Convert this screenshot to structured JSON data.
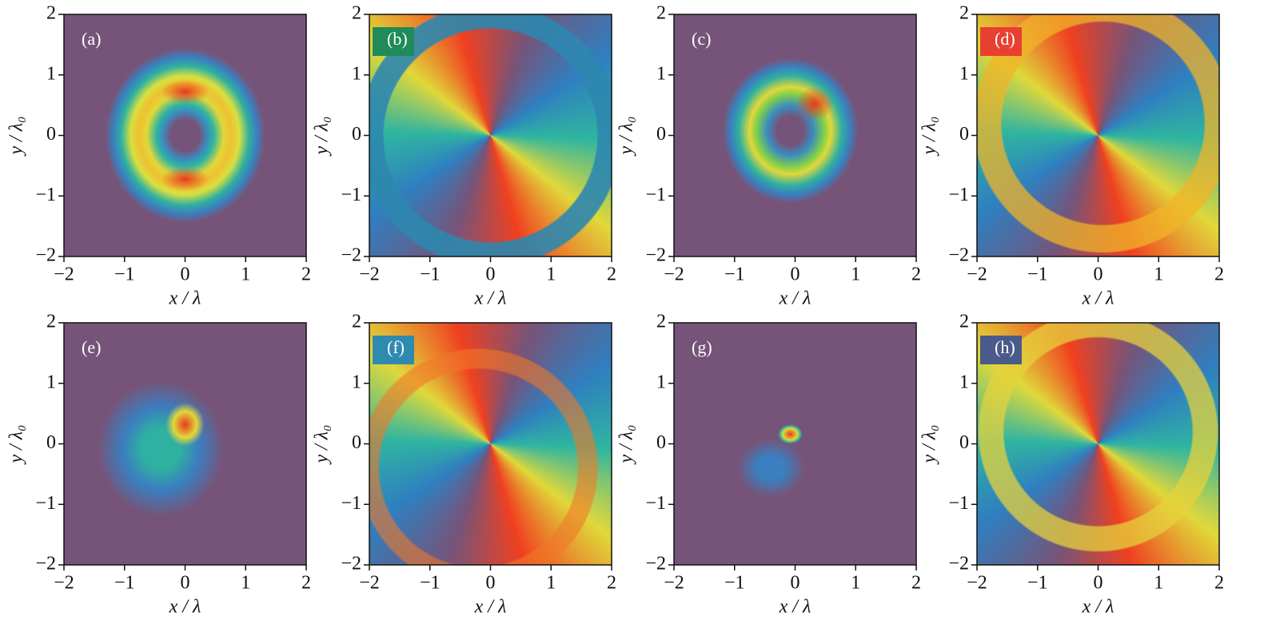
{
  "chart_data": [
    {
      "type": "image",
      "label": "(a)",
      "x_label": "x / λ",
      "y_label": "y / λ₀",
      "xlim": [
        -2,
        2
      ],
      "ylim": [
        -2,
        2
      ],
      "xticks": [
        {
          "value": -2,
          "label": "−2"
        },
        {
          "value": -1,
          "label": "−1"
        },
        0,
        1,
        2
      ],
      "yticks": [
        {
          "value": -2,
          "label": "−2"
        },
        {
          "value": -1,
          "label": "−1"
        },
        0,
        1,
        2
      ]
    },
    {
      "type": "image",
      "label": "(b)",
      "x_label": "x / λ",
      "y_label": "y / λ₀",
      "xlim": [
        -2,
        2
      ],
      "ylim": [
        -2,
        2
      ],
      "xticks": [
        {
          "value": -2,
          "label": "−2"
        },
        {
          "value": -1,
          "label": "−1"
        },
        0,
        1,
        2
      ],
      "yticks": [
        {
          "value": -2,
          "label": "−2"
        },
        {
          "value": -1,
          "label": "−1"
        },
        0,
        1,
        2
      ]
    },
    {
      "type": "image",
      "label": "(c)",
      "x_label": "x / λ",
      "y_label": "y / λ₀",
      "xlim": [
        -2,
        2
      ],
      "ylim": [
        -2,
        2
      ],
      "xticks": [
        {
          "value": -2,
          "label": "−2"
        },
        {
          "value": -1,
          "label": "−1"
        },
        0,
        1,
        2
      ],
      "yticks": [
        {
          "value": -2,
          "label": "−2"
        },
        {
          "value": -1,
          "label": "−1"
        },
        0,
        1,
        2
      ]
    },
    {
      "type": "image",
      "label": "(d)",
      "x_label": "x / λ",
      "y_label": "y / λ₀",
      "xlim": [
        -2,
        2
      ],
      "ylim": [
        -2,
        2
      ],
      "xticks": [
        {
          "value": -2,
          "label": "−2"
        },
        {
          "value": -1,
          "label": "−1"
        },
        0,
        1,
        2
      ],
      "yticks": [
        {
          "value": -2,
          "label": "−2"
        },
        {
          "value": -1,
          "label": "−1"
        },
        0,
        1,
        2
      ]
    },
    {
      "type": "image",
      "label": "(e)",
      "x_label": "x / λ",
      "y_label": "y / λ₀",
      "xlim": [
        -2,
        2
      ],
      "ylim": [
        -2,
        2
      ],
      "xticks": [
        {
          "value": -2,
          "label": "−2"
        },
        {
          "value": -1,
          "label": "−1"
        },
        0,
        1,
        2
      ],
      "yticks": [
        {
          "value": -2,
          "label": "−2"
        },
        {
          "value": -1,
          "label": "−1"
        },
        0,
        1,
        2
      ]
    },
    {
      "type": "image",
      "label": "(f)",
      "x_label": "x / λ",
      "y_label": "y / λ₀",
      "xlim": [
        -2,
        2
      ],
      "ylim": [
        -2,
        2
      ],
      "xticks": [
        {
          "value": -2,
          "label": "−2"
        },
        {
          "value": -1,
          "label": "−1"
        },
        0,
        1,
        2
      ],
      "yticks": [
        {
          "value": -2,
          "label": "−2"
        },
        {
          "value": -1,
          "label": "−1"
        },
        0,
        1,
        2
      ]
    },
    {
      "type": "image",
      "label": "(g)",
      "x_label": "x / λ",
      "y_label": "y / λ₀",
      "xlim": [
        -2,
        2
      ],
      "ylim": [
        -2,
        2
      ],
      "xticks": [
        {
          "value": -2,
          "label": "−2"
        },
        {
          "value": -1,
          "label": "−1"
        },
        0,
        1,
        2
      ],
      "yticks": [
        {
          "value": -2,
          "label": "−2"
        },
        {
          "value": -1,
          "label": "−1"
        },
        0,
        1,
        2
      ]
    },
    {
      "type": "image",
      "label": "(h)",
      "x_label": "x / λ",
      "y_label": "y / λ₀",
      "xlim": [
        -2,
        2
      ],
      "ylim": [
        -2,
        2
      ],
      "xticks": [
        {
          "value": -2,
          "label": "−2"
        },
        {
          "value": -1,
          "label": "−1"
        },
        0,
        1,
        2
      ],
      "yticks": [
        {
          "value": -2,
          "label": "−2"
        },
        {
          "value": -1,
          "label": "−1"
        },
        0,
        1,
        2
      ]
    }
  ]
}
